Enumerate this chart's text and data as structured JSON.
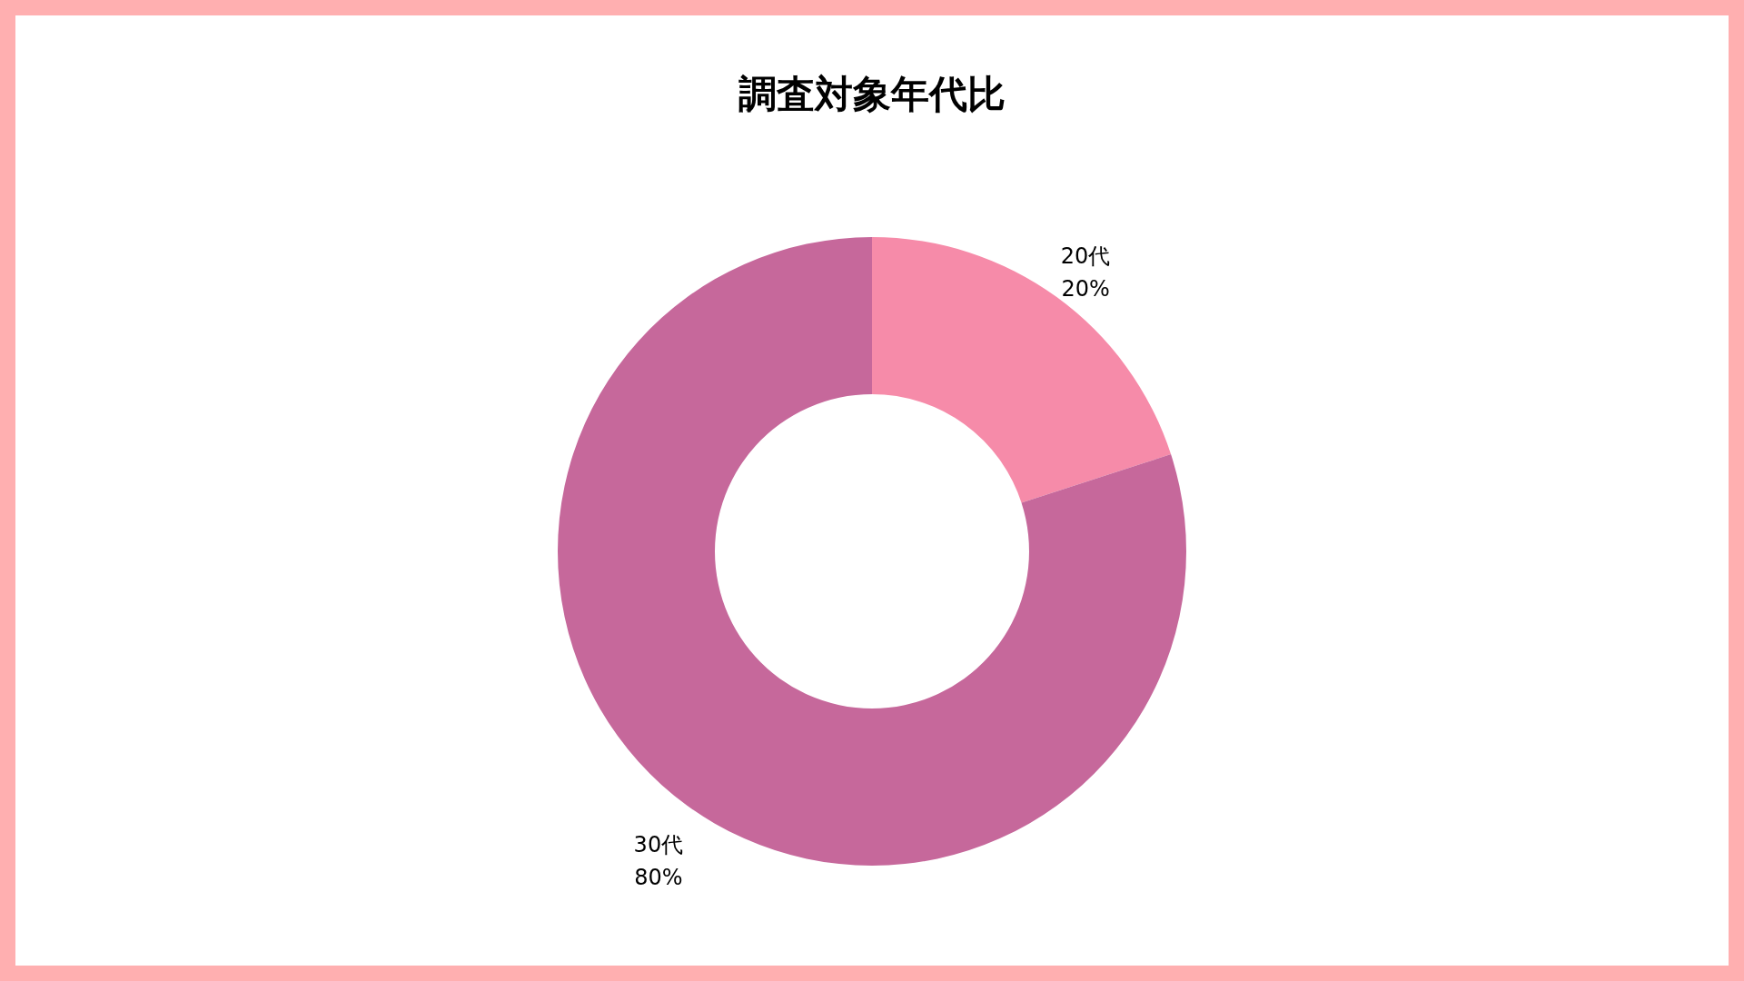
{
  "chart_data": {
    "type": "donut",
    "title": "調査対象年代比",
    "categories": [
      "20代",
      "30代"
    ],
    "values": [
      20,
      80
    ],
    "value_labels": [
      "20%",
      "80%"
    ],
    "colors": [
      "#f68ba9",
      "#c6689b"
    ]
  }
}
